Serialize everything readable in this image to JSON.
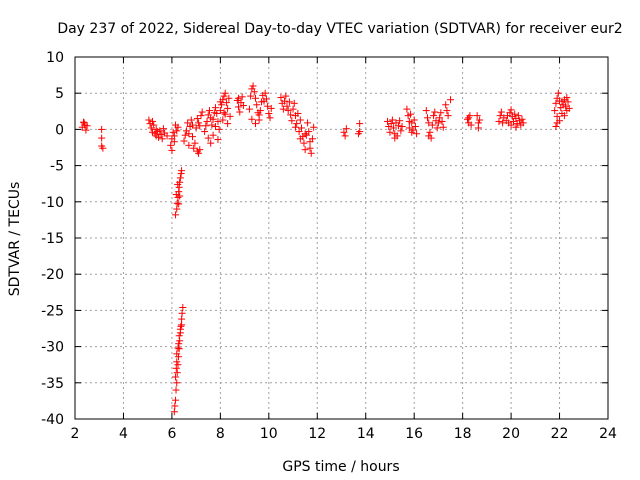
{
  "chart_data": {
    "type": "scatter",
    "title": "Day 237 of 2022, Sidereal Day-to-day VTEC variation (SDTVAR) for receiver eur2",
    "xlabel": "GPS time / hours",
    "ylabel": "SDTVAR / TECUs",
    "xlim": [
      2,
      24
    ],
    "ylim": [
      -40,
      10
    ],
    "xticks": [
      2,
      4,
      6,
      8,
      10,
      12,
      14,
      16,
      18,
      20,
      22,
      24
    ],
    "yticks": [
      10,
      5,
      0,
      -5,
      -10,
      -15,
      -20,
      -25,
      -30,
      -35,
      -40
    ],
    "grid": true,
    "marker": "+",
    "color": "#ff0000",
    "series": [
      {
        "name": "SDTVAR",
        "points": [
          [
            2.3,
            0.3
          ],
          [
            2.35,
            1.0
          ],
          [
            2.4,
            0.6
          ],
          [
            2.45,
            -0.1
          ],
          [
            2.5,
            0.5
          ],
          [
            2.38,
            0.9
          ],
          [
            3.1,
            0.0
          ],
          [
            3.1,
            -1.2
          ],
          [
            3.15,
            -2.6
          ],
          [
            3.1,
            -2.3
          ],
          [
            5.05,
            1.3
          ],
          [
            5.1,
            0.8
          ],
          [
            5.15,
            0.2
          ],
          [
            5.2,
            -0.4
          ],
          [
            5.25,
            0.6
          ],
          [
            5.3,
            -0.6
          ],
          [
            5.35,
            -0.9
          ],
          [
            5.4,
            -0.3
          ],
          [
            5.45,
            -1.1
          ],
          [
            5.5,
            -0.2
          ],
          [
            5.55,
            -0.7
          ],
          [
            5.6,
            -1.3
          ],
          [
            5.65,
            0.1
          ],
          [
            5.7,
            -0.5
          ],
          [
            5.8,
            -0.9
          ],
          [
            5.2,
            1.1
          ],
          [
            5.35,
            0.0
          ],
          [
            5.95,
            -2.2
          ],
          [
            6.0,
            -1.3
          ],
          [
            6.05,
            -0.4
          ],
          [
            6.1,
            -0.9
          ],
          [
            6.15,
            0.6
          ],
          [
            6.2,
            -0.2
          ],
          [
            6.25,
            0.3
          ],
          [
            6.0,
            -2.9
          ],
          [
            6.1,
            -1.7
          ],
          [
            6.15,
            -11.8
          ],
          [
            6.2,
            -11.0
          ],
          [
            6.22,
            -10.2
          ],
          [
            6.25,
            -9.4
          ],
          [
            6.28,
            -8.6
          ],
          [
            6.3,
            -8.0
          ],
          [
            6.32,
            -7.3
          ],
          [
            6.35,
            -6.7
          ],
          [
            6.38,
            -6.1
          ],
          [
            6.4,
            -5.7
          ],
          [
            6.18,
            -9.0
          ],
          [
            6.24,
            -7.6
          ],
          [
            6.28,
            -10.3
          ],
          [
            6.32,
            -9.2
          ],
          [
            6.1,
            -39.0
          ],
          [
            6.12,
            -38.2
          ],
          [
            6.15,
            -37.4
          ],
          [
            6.17,
            -36.0
          ],
          [
            6.2,
            -35.0
          ],
          [
            6.22,
            -33.6
          ],
          [
            6.25,
            -32.5
          ],
          [
            6.27,
            -31.4
          ],
          [
            6.3,
            -30.3
          ],
          [
            6.32,
            -29.2
          ],
          [
            6.35,
            -28.1
          ],
          [
            6.37,
            -27.2
          ],
          [
            6.4,
            -26.2
          ],
          [
            6.42,
            -25.4
          ],
          [
            6.45,
            -24.6
          ],
          [
            6.15,
            -34.2
          ],
          [
            6.2,
            -32.1
          ],
          [
            6.25,
            -30.2
          ],
          [
            6.3,
            -28.5
          ],
          [
            6.35,
            -27.6
          ],
          [
            6.2,
            -31.0
          ],
          [
            6.18,
            -33.0
          ],
          [
            6.28,
            -29.6
          ],
          [
            6.4,
            -27.0
          ],
          [
            6.5,
            -1.6
          ],
          [
            6.55,
            -0.8
          ],
          [
            6.6,
            -0.2
          ],
          [
            6.65,
            0.9
          ],
          [
            6.7,
            -0.6
          ],
          [
            6.75,
            0.4
          ],
          [
            6.8,
            1.3
          ],
          [
            6.85,
            -1.0
          ],
          [
            6.9,
            -2.6
          ],
          [
            6.95,
            -1.9
          ],
          [
            6.7,
            -2.2
          ],
          [
            6.85,
            0.6
          ],
          [
            7.05,
            -3.0
          ],
          [
            7.1,
            -3.3
          ],
          [
            7.15,
            -2.8
          ],
          [
            7.0,
            0.2
          ],
          [
            7.05,
            1.5
          ],
          [
            7.1,
            0.9
          ],
          [
            7.2,
            1.9
          ],
          [
            7.25,
            2.4
          ],
          [
            7.15,
            0.5
          ],
          [
            7.35,
            -0.3
          ],
          [
            7.4,
            0.5
          ],
          [
            7.45,
            1.1
          ],
          [
            7.5,
            2.0
          ],
          [
            7.55,
            2.6
          ],
          [
            7.6,
            1.6
          ],
          [
            7.65,
            0.6
          ],
          [
            7.7,
            1.4
          ],
          [
            7.75,
            2.3
          ],
          [
            7.8,
            3.0
          ],
          [
            7.85,
            2.2
          ],
          [
            7.9,
            1.1
          ],
          [
            7.95,
            0.0
          ],
          [
            7.5,
            -1.2
          ],
          [
            7.6,
            -1.9
          ],
          [
            7.7,
            -0.8
          ],
          [
            7.8,
            0.4
          ],
          [
            7.9,
            -1.4
          ],
          [
            8.0,
            2.6
          ],
          [
            8.05,
            3.4
          ],
          [
            8.1,
            4.1
          ],
          [
            8.15,
            4.6
          ],
          [
            8.2,
            5.0
          ],
          [
            8.25,
            3.7
          ],
          [
            8.3,
            2.9
          ],
          [
            8.35,
            4.3
          ],
          [
            8.4,
            1.8
          ],
          [
            8.1,
            1.3
          ],
          [
            8.2,
            2.1
          ],
          [
            8.3,
            0.8
          ],
          [
            8.0,
            3.8
          ],
          [
            8.15,
            2.3
          ],
          [
            8.7,
            4.0
          ],
          [
            8.75,
            3.1
          ],
          [
            8.8,
            2.4
          ],
          [
            8.85,
            3.7
          ],
          [
            8.9,
            4.5
          ],
          [
            8.95,
            3.3
          ],
          [
            8.75,
            4.3
          ],
          [
            9.2,
            2.8
          ],
          [
            9.25,
            4.6
          ],
          [
            9.3,
            5.6
          ],
          [
            9.35,
            6.0
          ],
          [
            9.4,
            5.2
          ],
          [
            9.45,
            4.3
          ],
          [
            9.5,
            3.4
          ],
          [
            9.55,
            2.3
          ],
          [
            9.6,
            1.3
          ],
          [
            9.65,
            2.6
          ],
          [
            9.7,
            3.8
          ],
          [
            9.75,
            4.7
          ],
          [
            9.8,
            3.9
          ],
          [
            9.85,
            5.0
          ],
          [
            9.9,
            4.2
          ],
          [
            9.95,
            3.2
          ],
          [
            10.0,
            2.2
          ],
          [
            10.05,
            1.6
          ],
          [
            10.1,
            2.9
          ],
          [
            9.3,
            1.4
          ],
          [
            9.45,
            0.8
          ],
          [
            9.6,
            2.0
          ],
          [
            10.5,
            4.4
          ],
          [
            10.55,
            3.6
          ],
          [
            10.6,
            2.8
          ],
          [
            10.65,
            3.9
          ],
          [
            10.7,
            4.6
          ],
          [
            10.75,
            3.2
          ],
          [
            10.8,
            2.6
          ],
          [
            10.85,
            3.8
          ],
          [
            10.9,
            2.0
          ],
          [
            10.95,
            1.2
          ],
          [
            11.0,
            2.8
          ],
          [
            11.05,
            3.6
          ],
          [
            11.1,
            1.9
          ],
          [
            11.15,
            0.8
          ],
          [
            11.2,
            2.2
          ],
          [
            11.25,
            -0.3
          ],
          [
            11.3,
            1.3
          ],
          [
            11.35,
            0.2
          ],
          [
            11.4,
            -1.0
          ],
          [
            11.45,
            -1.9
          ],
          [
            11.5,
            -2.8
          ],
          [
            11.55,
            -0.8
          ],
          [
            11.6,
            0.9
          ],
          [
            11.65,
            -0.3
          ],
          [
            11.7,
            -1.7
          ],
          [
            11.75,
            -3.3
          ],
          [
            11.8,
            -1.3
          ],
          [
            11.85,
            0.3
          ],
          [
            11.1,
            0.3
          ],
          [
            11.3,
            -1.3
          ],
          [
            11.5,
            -0.6
          ],
          [
            11.7,
            -2.6
          ],
          [
            13.1,
            -0.4
          ],
          [
            13.15,
            -0.9
          ],
          [
            13.2,
            0.1
          ],
          [
            13.7,
            -0.6
          ],
          [
            13.75,
            0.8
          ],
          [
            13.75,
            -0.3
          ],
          [
            14.9,
            1.1
          ],
          [
            14.95,
            0.4
          ],
          [
            15.0,
            -0.4
          ],
          [
            15.05,
            0.8
          ],
          [
            15.1,
            1.3
          ],
          [
            15.15,
            0.2
          ],
          [
            15.2,
            -0.6
          ],
          [
            15.25,
            0.9
          ],
          [
            15.3,
            -0.9
          ],
          [
            15.35,
            0.5
          ],
          [
            15.4,
            1.2
          ],
          [
            15.45,
            -0.2
          ],
          [
            15.5,
            0.4
          ],
          [
            15.2,
            -1.2
          ],
          [
            15.7,
            2.8
          ],
          [
            15.75,
            1.9
          ],
          [
            15.8,
            1.1
          ],
          [
            15.85,
            2.1
          ],
          [
            15.9,
            0.9
          ],
          [
            15.95,
            -0.1
          ],
          [
            16.0,
            1.3
          ],
          [
            16.05,
            0.4
          ],
          [
            16.1,
            -0.6
          ],
          [
            15.8,
            0.2
          ],
          [
            15.9,
            -0.4
          ],
          [
            16.5,
            2.6
          ],
          [
            16.55,
            1.6
          ],
          [
            16.6,
            0.9
          ],
          [
            16.65,
            -0.4
          ],
          [
            16.7,
            -1.2
          ],
          [
            16.75,
            0.6
          ],
          [
            16.8,
            1.9
          ],
          [
            16.85,
            2.4
          ],
          [
            16.9,
            1.2
          ],
          [
            16.95,
            0.2
          ],
          [
            17.0,
            0.9
          ],
          [
            17.05,
            1.6
          ],
          [
            17.1,
            2.3
          ],
          [
            17.15,
            1.1
          ],
          [
            17.2,
            0.3
          ],
          [
            17.3,
            3.4
          ],
          [
            17.35,
            2.6
          ],
          [
            17.4,
            1.9
          ],
          [
            17.5,
            4.1
          ],
          [
            16.6,
            -0.9
          ],
          [
            18.2,
            1.4
          ],
          [
            18.25,
            0.9
          ],
          [
            18.3,
            1.9
          ],
          [
            18.35,
            0.6
          ],
          [
            18.25,
            1.6
          ],
          [
            18.6,
            1.9
          ],
          [
            18.65,
            0.9
          ],
          [
            18.7,
            1.3
          ],
          [
            18.65,
            0.2
          ],
          [
            19.5,
            1.1
          ],
          [
            19.55,
            1.9
          ],
          [
            19.6,
            2.4
          ],
          [
            19.65,
            0.9
          ],
          [
            19.7,
            1.6
          ],
          [
            19.8,
            1.2
          ],
          [
            19.85,
            1.9
          ],
          [
            19.9,
            0.9
          ],
          [
            19.95,
            2.3
          ],
          [
            20.0,
            2.7
          ],
          [
            20.05,
            1.8
          ],
          [
            20.1,
            1.1
          ],
          [
            20.15,
            2.1
          ],
          [
            20.2,
            1.5
          ],
          [
            20.25,
            0.8
          ],
          [
            20.3,
            1.9
          ],
          [
            20.35,
            1.2
          ],
          [
            20.4,
            0.6
          ],
          [
            20.45,
            1.4
          ],
          [
            20.5,
            0.9
          ],
          [
            20.0,
            0.6
          ],
          [
            20.2,
            0.3
          ],
          [
            21.8,
            2.6
          ],
          [
            21.85,
            3.6
          ],
          [
            21.9,
            4.3
          ],
          [
            21.95,
            5.0
          ],
          [
            22.0,
            3.9
          ],
          [
            22.05,
            3.0
          ],
          [
            22.1,
            2.2
          ],
          [
            22.15,
            3.4
          ],
          [
            22.2,
            4.1
          ],
          [
            22.25,
            3.2
          ],
          [
            22.3,
            2.6
          ],
          [
            22.35,
            3.8
          ],
          [
            22.4,
            2.9
          ],
          [
            21.9,
            1.8
          ],
          [
            22.0,
            1.2
          ],
          [
            22.1,
            3.9
          ],
          [
            22.2,
            1.9
          ],
          [
            22.3,
            4.4
          ],
          [
            21.85,
            0.4
          ],
          [
            21.9,
            0.9
          ]
        ]
      }
    ]
  }
}
